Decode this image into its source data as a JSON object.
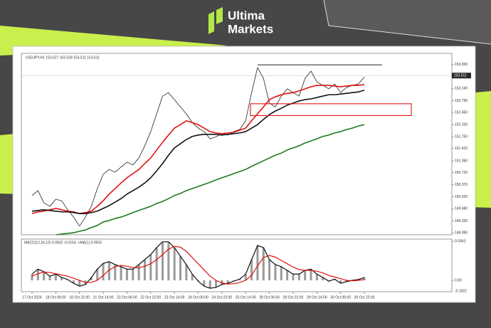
{
  "brand": {
    "line1": "Ultima",
    "line2": "Markets"
  },
  "chart_data": [
    {
      "type": "line",
      "title": "USDJPY,H1 153.527 153.528 153.511 153.511",
      "categories": [
        "17 Oct 2024",
        null,
        null,
        null,
        "18 Oct 06:00",
        null,
        null,
        null,
        "18 Oct 22:00",
        null,
        null,
        null,
        "21 Oct 14:00",
        null,
        null,
        null,
        "22 Oct 06:00",
        null,
        null,
        null,
        "22 Oct 22:00",
        null,
        null,
        null,
        "23 Oct 14:00",
        null,
        null,
        null,
        "24 Oct 06:00",
        null,
        null,
        null,
        "24 Oct 22:00",
        null,
        null,
        null,
        "25 Oct 14:00",
        null,
        null,
        null,
        "28 Oct 06:00",
        null,
        null,
        null,
        "28 Oct 22:00",
        null,
        null,
        null,
        "29 Oct 14:00",
        null,
        null,
        null,
        "30 Oct 06:00",
        null,
        null,
        null,
        "30 Oct 22:00"
      ],
      "series": [
        {
          "kind": "price",
          "color": "#222222",
          "values": [
            150.06,
            150.2,
            149.85,
            149.75,
            149.95,
            149.91,
            149.65,
            149.44,
            149.18,
            149.44,
            149.75,
            150.26,
            150.67,
            150.81,
            150.73,
            150.88,
            151.02,
            150.94,
            151.14,
            151.49,
            151.9,
            152.41,
            152.92,
            153.02,
            152.82,
            152.61,
            152.41,
            152.16,
            152.0,
            151.9,
            151.69,
            151.75,
            151.84,
            151.8,
            151.9,
            151.96,
            152.21,
            153.02,
            153.74,
            153.43,
            152.72,
            152.61,
            152.92,
            153.13,
            153.02,
            152.92,
            153.43,
            153.64,
            153.33,
            153.23,
            153.13,
            153.27,
            153.02,
            153.17,
            153.23,
            153.27,
            153.47
          ]
        },
        {
          "kind": "ma",
          "color": "#e01010",
          "values": [
            149.54,
            149.59,
            149.61,
            149.65,
            149.69,
            149.65,
            149.61,
            149.59,
            149.54,
            149.57,
            149.61,
            149.75,
            149.91,
            150.1,
            150.26,
            150.42,
            150.57,
            150.69,
            150.81,
            150.98,
            151.14,
            151.37,
            151.59,
            151.8,
            152.0,
            152.1,
            152.21,
            152.16,
            152.1,
            152.0,
            151.9,
            151.86,
            151.84,
            151.86,
            151.88,
            151.94,
            152.0,
            152.21,
            152.41,
            152.61,
            152.82,
            152.9,
            152.96,
            153.0,
            153.02,
            153.07,
            153.13,
            153.19,
            153.23,
            153.23,
            153.23,
            153.21,
            153.19,
            153.21,
            153.23,
            153.23,
            153.25
          ]
        },
        {
          "kind": "ma",
          "color": "#111111",
          "values": [
            149.61,
            149.63,
            149.65,
            149.63,
            149.61,
            149.59,
            149.59,
            149.57,
            149.54,
            149.54,
            149.57,
            149.61,
            149.69,
            149.77,
            149.87,
            149.97,
            150.1,
            150.2,
            150.3,
            150.42,
            150.57,
            150.77,
            150.98,
            151.22,
            151.43,
            151.55,
            151.67,
            151.76,
            151.8,
            151.82,
            151.82,
            151.82,
            151.8,
            151.82,
            151.84,
            151.86,
            151.9,
            152.0,
            152.1,
            152.25,
            152.39,
            152.49,
            152.57,
            152.66,
            152.72,
            152.78,
            152.82,
            152.84,
            152.88,
            152.92,
            152.96,
            152.96,
            152.98,
            153.0,
            153.02,
            153.04,
            153.09
          ]
        },
        {
          "kind": "ma",
          "color": "#1e7a1e",
          "values": [
            null,
            null,
            null,
            null,
            148.93,
            148.95,
            148.97,
            148.99,
            149.03,
            149.07,
            149.14,
            149.2,
            149.3,
            149.34,
            149.4,
            149.44,
            149.5,
            149.57,
            149.63,
            149.69,
            149.75,
            149.83,
            149.89,
            149.97,
            150.06,
            150.12,
            150.2,
            150.26,
            150.32,
            150.38,
            150.44,
            150.51,
            150.57,
            150.63,
            150.69,
            150.75,
            150.81,
            150.9,
            150.98,
            151.06,
            151.14,
            151.22,
            151.28,
            151.37,
            151.43,
            151.49,
            151.57,
            151.63,
            151.69,
            151.76,
            151.8,
            151.86,
            151.9,
            151.96,
            152.0,
            152.06,
            152.1
          ]
        }
      ],
      "ylim": [
        148.93,
        154.15
      ],
      "yticks": [
        {
          "value": 153.83,
          "label": "153.830"
        },
        {
          "value": 153.14,
          "label": "153.140"
        },
        {
          "value": 152.79,
          "label": "152.790"
        },
        {
          "value": 152.45,
          "label": "152.450"
        },
        {
          "value": 152.1,
          "label": "152.100"
        },
        {
          "value": 151.75,
          "label": "151.750"
        },
        {
          "value": 151.41,
          "label": "151.410"
        },
        {
          "value": 151.06,
          "label": "151.060"
        },
        {
          "value": 150.72,
          "label": "150.720"
        },
        {
          "value": 150.37,
          "label": "150.370"
        },
        {
          "value": 150.02,
          "label": "150.020"
        },
        {
          "value": 149.68,
          "label": "149.680"
        },
        {
          "value": 149.33,
          "label": "149.330"
        },
        {
          "value": 148.99,
          "label": "148.990"
        }
      ],
      "current_price": {
        "value": 153.511,
        "label": "153.511"
      },
      "zone": [
        152.36,
        152.7
      ],
      "zone_color": "#e01010",
      "resistance": 153.82,
      "grid": false
    },
    {
      "type": "macd",
      "title": "MACD(12,26,15) 0.0503 -0.0154 ->MA(1) 0.0503",
      "series": [
        {
          "kind": "histogram",
          "color": "#9a9a9a",
          "line_color": "#111111",
          "values": [
            0.015,
            0.027,
            0.021,
            0.01,
            0.015,
            0.007,
            0.002,
            -0.007,
            -0.014,
            -0.01,
            0.007,
            0.027,
            0.041,
            0.045,
            0.038,
            0.033,
            0.027,
            0.027,
            0.038,
            0.05,
            0.062,
            0.079,
            0.093,
            0.093,
            0.079,
            0.058,
            0.038,
            0.015,
            -0.002,
            -0.014,
            -0.019,
            -0.017,
            -0.01,
            -0.007,
            -0.002,
            0.003,
            0.015,
            0.05,
            0.084,
            0.079,
            0.05,
            0.038,
            0.033,
            0.024,
            0.015,
            0.015,
            0.024,
            0.027,
            0.015,
            0.007,
            -0.002,
            0.003,
            -0.007,
            -0.003,
            0.0,
            0.002,
            0.007
          ]
        },
        {
          "kind": "signal",
          "color": "#e01010",
          "values": [
            0.01,
            0.016,
            0.02,
            0.019,
            0.016,
            0.013,
            0.01,
            0.005,
            0.0,
            -0.005,
            -0.005,
            0.0,
            0.012,
            0.025,
            0.033,
            0.036,
            0.034,
            0.031,
            0.03,
            0.034,
            0.04,
            0.05,
            0.062,
            0.075,
            0.082,
            0.08,
            0.07,
            0.055,
            0.04,
            0.025,
            0.01,
            0.0,
            -0.006,
            -0.009,
            -0.008,
            -0.005,
            0.0,
            0.012,
            0.035,
            0.055,
            0.06,
            0.056,
            0.048,
            0.04,
            0.032,
            0.026,
            0.024,
            0.024,
            0.022,
            0.018,
            0.012,
            0.008,
            0.004,
            0.0,
            -0.001,
            0.0,
            0.002
          ]
        }
      ],
      "ylim": [
        -0.0274,
        0.0995
      ],
      "yticks": [
        0.0943,
        {
          "value": 0,
          "label": "0.00"
        }
      ],
      "bottom_label": "-0.1922"
    }
  ]
}
